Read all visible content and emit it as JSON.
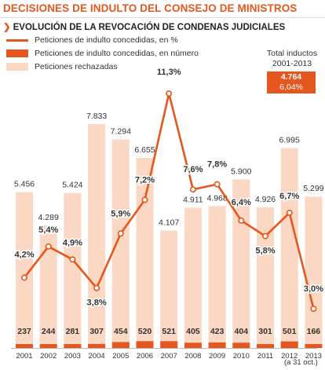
{
  "header": {
    "title": "DECISIONES DE INDULTO DEL CONSEJO DE MINISTROS",
    "subtitle": "EVOLUCIÓN DE LA REVOCACIÓN DE CONDENAS JUDICIALES"
  },
  "legend": [
    {
      "label": "Peticiones de indulto concedidas, en %",
      "swatch": "line",
      "color": "#e5571e"
    },
    {
      "label": "Peticiones de indulto concedidas, en número",
      "swatch": "dark-bar",
      "color": "#e5571e"
    },
    {
      "label": "Peticiones rechazadas",
      "swatch": "light-bar",
      "color": "#fbd8c3"
    }
  ],
  "totals": {
    "label_line1": "Total inductos",
    "label_line2": "2001-2013",
    "count": "4.764",
    "percent": "6,04%"
  },
  "note": "(a 31 oct.)",
  "colors": {
    "accent": "#e5571e",
    "rejected": "#fbd8c3",
    "background": "#ffffff"
  },
  "chart_data": {
    "type": "bar",
    "categories": [
      "2001",
      "2002",
      "2003",
      "2004",
      "2005",
      "2006",
      "2007",
      "2008",
      "2009",
      "2010",
      "2011",
      "2012",
      "2013"
    ],
    "series": [
      {
        "name": "Peticiones rechazadas",
        "type": "bar",
        "values": [
          5456,
          4289,
          5424,
          7833,
          7294,
          6655,
          4107,
          4911,
          4968,
          5900,
          4926,
          6995,
          5299
        ],
        "labels": [
          "5.456",
          "4.289",
          "5.424",
          "7.833",
          "7.294",
          "6.655",
          "4.107",
          "4.911",
          "4.968",
          "5.900",
          "4.926",
          "6.995",
          "5.299"
        ]
      },
      {
        "name": "Peticiones de indulto concedidas, en número",
        "type": "bar",
        "values": [
          237,
          244,
          281,
          307,
          454,
          520,
          521,
          405,
          423,
          404,
          301,
          501,
          166
        ],
        "labels": [
          "237",
          "244",
          "281",
          "307",
          "454",
          "520",
          "521",
          "405",
          "423",
          "404",
          "301",
          "501",
          "166"
        ]
      },
      {
        "name": "Peticiones de indulto concedidas, en %",
        "type": "line",
        "values": [
          4.2,
          5.4,
          4.9,
          3.8,
          5.9,
          7.2,
          11.3,
          7.6,
          7.8,
          6.4,
          5.8,
          6.7,
          3.0
        ],
        "labels": [
          "4,2%",
          "5,4%",
          "4,9%",
          "3,8%",
          "5,9%",
          "7,2%",
          "11,3%",
          "7,6%",
          "7,8%",
          "6,4%",
          "5,8%",
          "6,7%",
          "3,0%"
        ]
      }
    ]
  }
}
